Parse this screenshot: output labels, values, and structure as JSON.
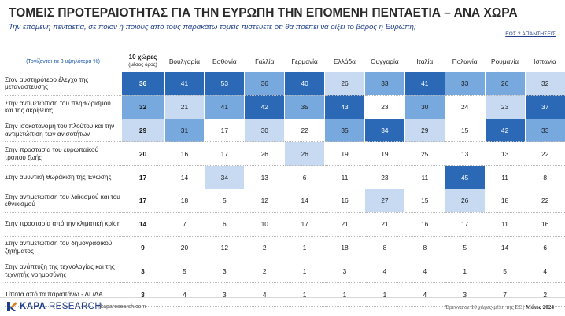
{
  "header": {
    "title": "ΤΟΜΕΙΣ ΠΡΟΤΕΡΑΙΟΤΗΤΑΣ ΓΙΑ ΤΗΝ ΕΥΡΩΠΗ ΤΗΝ ΕΠΟΜΕΝΗ ΠΕΝΤΑΕΤΙΑ – ΑΝΑ ΧΩΡΑ",
    "subtitle": "Την επόμενη πενταετία, σε ποιον ή ποιους από τους παρακάτω τομείς πιστεύετε ότι θα πρέπει να ρίξει το βάρος η Ευρώπη;",
    "base_note": "ΕΩΣ 2 ΑΠΑΝΤΗΣΕΙΣ",
    "highlight_note": "(Τονίζονται τα 3 υψηλότερα %)"
  },
  "chart_data": {
    "type": "table",
    "first_column": {
      "name": "10 χώρες",
      "subname": "(μέσος όρος)"
    },
    "countries": [
      "Βουλγαρία",
      "Εσθονία",
      "Γαλλία",
      "Γερμανία",
      "Ελλάδα",
      "Ουγγαρία",
      "Ιταλία",
      "Πολωνία",
      "Ρουμανία",
      "Ισπανία"
    ],
    "highlight_colors": {
      "rank1": "#2b68b5",
      "rank2": "#78a9de",
      "rank3": "#c7daf2"
    },
    "rows": [
      {
        "label": "Στον αυστηρότερο έλεγχο της μεταναστευσης",
        "avg": 36,
        "values": [
          41,
          53,
          36,
          40,
          26,
          33,
          41,
          33,
          26,
          32
        ]
      },
      {
        "label": "Στην αντιμετώπιση του πληθωρισμού και της ακρίβειας",
        "avg": 32,
        "values": [
          21,
          41,
          42,
          35,
          43,
          23,
          30,
          24,
          23,
          37
        ]
      },
      {
        "label": "Στην ισοκατανομή του πλούτου και την αντιμετώπιση των ανισοτήτων",
        "avg": 29,
        "values": [
          31,
          17,
          30,
          22,
          35,
          34,
          29,
          15,
          42,
          33
        ]
      },
      {
        "label": "Στην προστασία του ευρωπαϊκού τρόπου ζωής",
        "avg": 20,
        "values": [
          16,
          17,
          26,
          26,
          19,
          19,
          25,
          13,
          13,
          22
        ]
      },
      {
        "label": "Στην αμυντική θωράκιση της Ένωσης",
        "avg": 17,
        "values": [
          14,
          34,
          13,
          6,
          11,
          23,
          11,
          45,
          11,
          8
        ]
      },
      {
        "label": "Στην αντιμετώπιση του λαϊκισμού και του εθνικισμού",
        "avg": 17,
        "values": [
          18,
          5,
          12,
          14,
          16,
          27,
          15,
          26,
          18,
          22
        ]
      },
      {
        "label": "Στην προστασία από την κλιματική κρίση",
        "avg": 14,
        "values": [
          7,
          6,
          10,
          17,
          21,
          21,
          16,
          17,
          11,
          16
        ]
      },
      {
        "label": "Στην αντιμετώπιση του δημογραφικού ζητήματος",
        "avg": 9,
        "values": [
          20,
          12,
          2,
          1,
          18,
          8,
          8,
          5,
          14,
          6
        ]
      },
      {
        "label": "Στην ανάπτυξη της τεχνολογίας και της τεχνητής νοημοσύνης",
        "avg": 3,
        "values": [
          5,
          3,
          2,
          1,
          3,
          4,
          4,
          1,
          5,
          4
        ]
      },
      {
        "label": "Τίποτα από τα παραπάνω - ΔΓ/ΔΑ",
        "avg": 3,
        "values": [
          4,
          3,
          4,
          1,
          1,
          1,
          4,
          3,
          7,
          2
        ]
      }
    ]
  },
  "footer": {
    "logo_bold": "KAPA",
    "logo_rest": "RESEARCH",
    "site": "kaparesearch.com",
    "source_text": "Έρευνα σε 10 χώρες-μέλη της ΕΕ",
    "source_sep": "|",
    "source_date": "Μάιος 2024"
  }
}
